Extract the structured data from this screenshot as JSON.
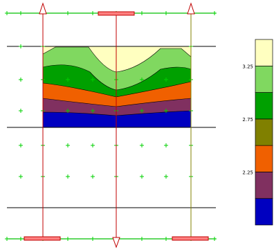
{
  "colorbar": {
    "colors": [
      "#0000c0",
      "#803060",
      "#f06000",
      "#808000",
      "#00a000",
      "#80d860",
      "#ffffc0"
    ],
    "ticks": [
      {
        "label": "2.25",
        "value": 2.25
      },
      {
        "label": "2.75",
        "value": 2.75
      },
      {
        "label": "3.25",
        "value": 3.25
      }
    ]
  },
  "palette": {
    "frame_line": "#000000",
    "guide_line": "#c00000",
    "handle_line": "#00c000",
    "marker": "#00d000",
    "contour_outline": "#000000"
  },
  "icons": {
    "end_arrow": "arrow-up-icon",
    "cut_arrow": "arrow-down-icon",
    "handle": "slider-handle",
    "grid_point": "plus-marker-icon"
  }
}
